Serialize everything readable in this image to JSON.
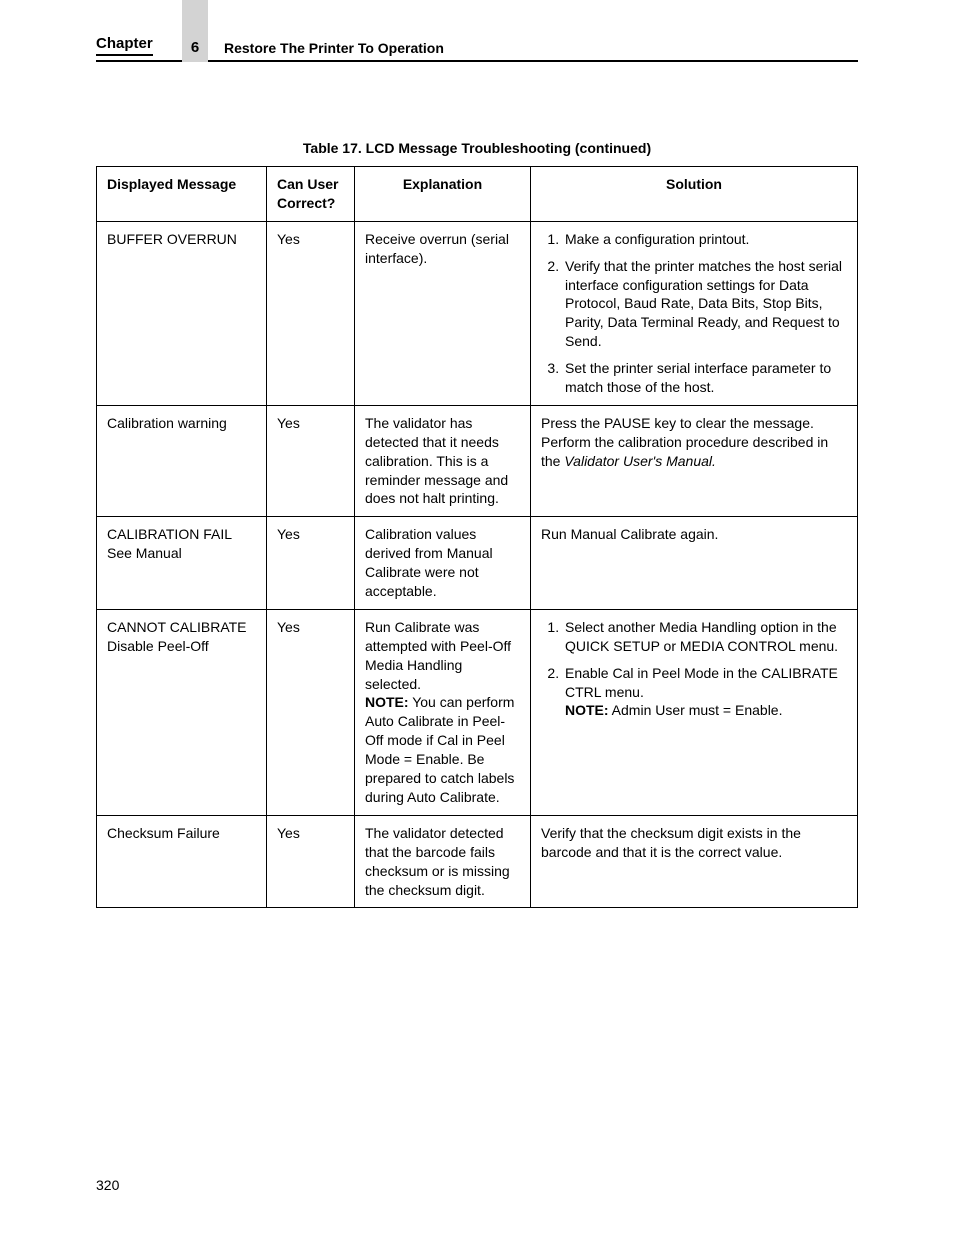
{
  "header": {
    "chapter_label": "Chapter",
    "chapter_num": "6",
    "section_title": "Restore The Printer To Operation"
  },
  "table": {
    "caption": "Table 17. LCD Message Troubleshooting (continued)",
    "columns": {
      "c1": "Displayed Message",
      "c2": "Can User Correct?",
      "c3": "Explanation",
      "c4": "Solution"
    },
    "rows": [
      {
        "message": "BUFFER OVERRUN",
        "correct": "Yes",
        "explanation": "Receive overrun (serial interface).",
        "solution_ol": [
          "Make a configuration printout.",
          "Verify that the printer matches the host serial interface configuration settings for Data Protocol, Baud Rate, Data Bits, Stop Bits, Parity, Data Terminal Ready, and Request to Send.",
          "Set the printer serial interface parameter to match those of the host."
        ]
      },
      {
        "message": "Calibration warning",
        "correct": "Yes",
        "explanation": "The validator has detected that it needs calibration. This is a reminder message and does not halt printing.",
        "solution_text_pre": "Press the PAUSE key to clear the message. Perform the calibration procedure described in the ",
        "solution_italic": "Validator User's Manual.",
        "solution_text_post": ""
      },
      {
        "message": "CALIBRATION FAIL See Manual",
        "correct": "Yes",
        "explanation": "Calibration values derived from Manual Calibrate were not acceptable.",
        "solution_text_pre": "Run Manual Calibrate again."
      },
      {
        "message": "CANNOT CALIBRATE Disable Peel-Off",
        "correct": "Yes",
        "explanation_pre": "Run Calibrate was attempted with Peel-Off Media Handling selected.",
        "explanation_note_label": "NOTE:",
        "explanation_note_body": " You can perform Auto Calibrate in Peel-Off mode if Cal in Peel Mode = Enable. Be prepared to catch labels during Auto Calibrate.",
        "solution_ol": [
          "Select another Media Handling option in the QUICK SETUP or MEDIA CONTROL menu.",
          ""
        ],
        "solution_li2_pre": "Enable Cal in Peel Mode in the CALIBRATE CTRL menu.",
        "solution_li2_note_label": "NOTE:",
        "solution_li2_note_body": " Admin User must = Enable."
      },
      {
        "message": "Checksum Failure",
        "correct": "Yes",
        "explanation": "The validator detected that the barcode fails checksum or is missing the checksum digit.",
        "solution_text_pre": "Verify that the checksum digit exists in the barcode and that it is the correct value."
      }
    ]
  },
  "page_number": "320"
}
